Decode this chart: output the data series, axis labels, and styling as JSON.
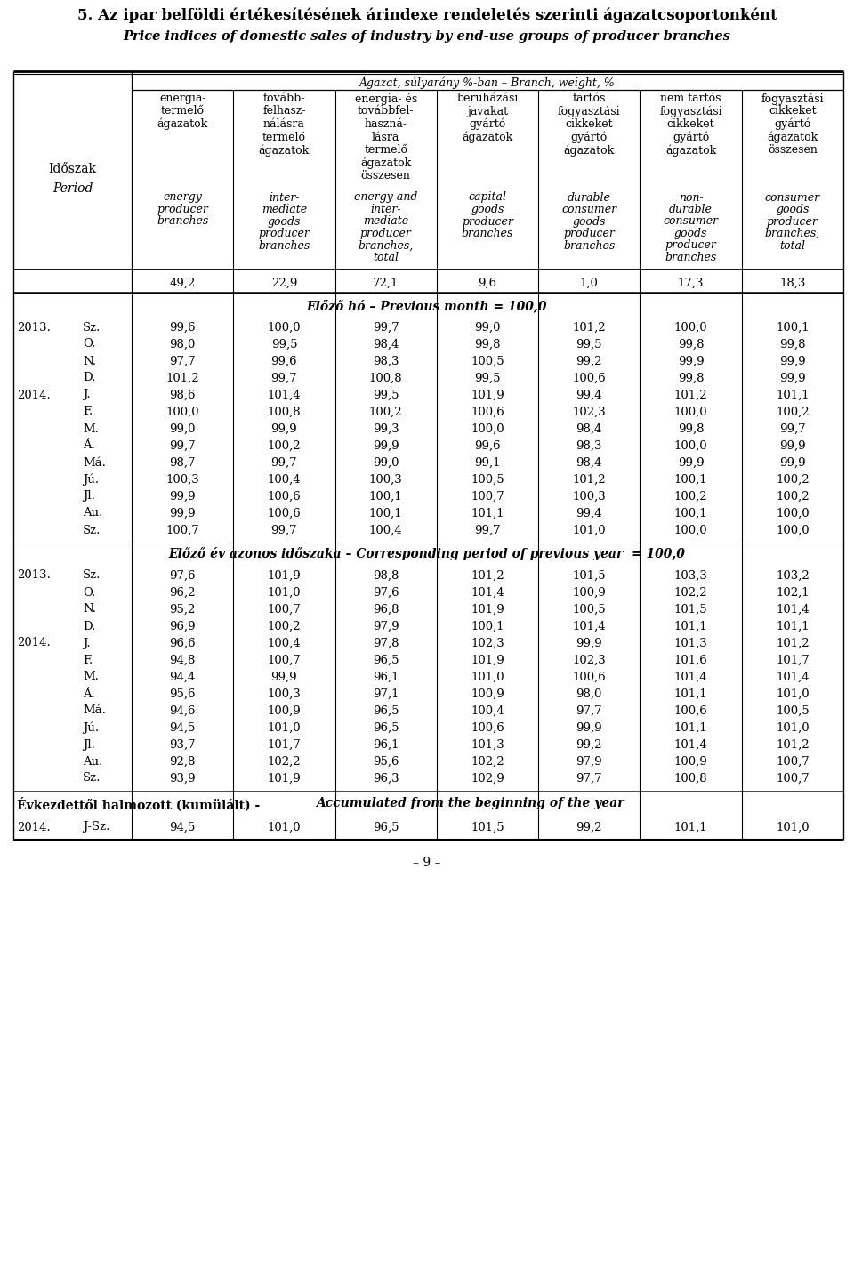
{
  "title_hu": "5. Az ipar belföldi értékesítésének árindexe rendeletés szerinti ágazatcsoportonként",
  "title_en": "Price indices of domestic sales of industry by end-use groups of producer branches",
  "col_headers_hu": [
    [
      "energia-",
      "termelő",
      "ágazatok"
    ],
    [
      "tovább-",
      "felhasz-",
      "nálásra",
      "termelő",
      "ágazatok"
    ],
    [
      "energia- és",
      "továbbfel-",
      "haszná-",
      "lásra",
      "termelő",
      "ágazatok",
      "összesen"
    ],
    [
      "beruházási",
      "javakat",
      "gyártó",
      "ágazatok"
    ],
    [
      "tartós",
      "fogyasztási",
      "cikkeket",
      "gyártó",
      "ágazatok"
    ],
    [
      "nem tartós",
      "fogyasztási",
      "cikkeket",
      "gyártó",
      "ágazatok"
    ],
    [
      "fogyasztási",
      "cikkeket",
      "gyártó",
      "ágazatok",
      "összesen"
    ]
  ],
  "col_headers_en": [
    [
      "energy",
      "producer",
      "branches"
    ],
    [
      "inter-",
      "mediate",
      "goods",
      "producer",
      "branches"
    ],
    [
      "energy and",
      "inter-",
      "mediate",
      "producer",
      "branches,",
      "total"
    ],
    [
      "capital",
      "goods",
      "producer",
      "branches"
    ],
    [
      "durable",
      "consumer",
      "goods",
      "producer",
      "branches"
    ],
    [
      "non-",
      "durable",
      "consumer",
      "goods",
      "producer",
      "branches"
    ],
    [
      "consumer",
      "goods",
      "producer",
      "branches,",
      "total"
    ]
  ],
  "weights": [
    "49,2",
    "22,9",
    "72,1",
    "9,6",
    "1,0",
    "17,3",
    "18,3"
  ],
  "branch_header": "Ágazat, súlyarány %-ban – Branch, weight, %",
  "period_label_hu": "Időszak",
  "period_label_en": "Period",
  "section1_label_hu": "Előző hó",
  "section1_label_en": "Previous month = 100,0",
  "section2_label_hu": "Előző év azonos időszaka",
  "section2_label_en": "Corresponding period of previous year  = 100,0",
  "section3_label_hu": "Évkezdettől halmozott (kumülált)",
  "section3_label_en": "Accumulated from the beginning of the year",
  "data_section1": [
    [
      "2013.",
      "Sz.",
      "99,6",
      "100,0",
      "99,7",
      "99,0",
      "101,2",
      "100,0",
      "100,1"
    ],
    [
      "",
      "O.",
      "98,0",
      "99,5",
      "98,4",
      "99,8",
      "99,5",
      "99,8",
      "99,8"
    ],
    [
      "",
      "N.",
      "97,7",
      "99,6",
      "98,3",
      "100,5",
      "99,2",
      "99,9",
      "99,9"
    ],
    [
      "",
      "D.",
      "101,2",
      "99,7",
      "100,8",
      "99,5",
      "100,6",
      "99,8",
      "99,9"
    ],
    [
      "2014.",
      "J.",
      "98,6",
      "101,4",
      "99,5",
      "101,9",
      "99,4",
      "101,2",
      "101,1"
    ],
    [
      "",
      "F.",
      "100,0",
      "100,8",
      "100,2",
      "100,6",
      "102,3",
      "100,0",
      "100,2"
    ],
    [
      "",
      "M.",
      "99,0",
      "99,9",
      "99,3",
      "100,0",
      "98,4",
      "99,8",
      "99,7"
    ],
    [
      "",
      "Á.",
      "99,7",
      "100,2",
      "99,9",
      "99,6",
      "98,3",
      "100,0",
      "99,9"
    ],
    [
      "",
      "Má.",
      "98,7",
      "99,7",
      "99,0",
      "99,1",
      "98,4",
      "99,9",
      "99,9"
    ],
    [
      "",
      "Jú.",
      "100,3",
      "100,4",
      "100,3",
      "100,5",
      "101,2",
      "100,1",
      "100,2"
    ],
    [
      "",
      "Jl.",
      "99,9",
      "100,6",
      "100,1",
      "100,7",
      "100,3",
      "100,2",
      "100,2"
    ],
    [
      "",
      "Au.",
      "99,9",
      "100,6",
      "100,1",
      "101,1",
      "99,4",
      "100,1",
      "100,0"
    ],
    [
      "",
      "Sz.",
      "100,7",
      "99,7",
      "100,4",
      "99,7",
      "101,0",
      "100,0",
      "100,0"
    ]
  ],
  "data_section2": [
    [
      "2013.",
      "Sz.",
      "97,6",
      "101,9",
      "98,8",
      "101,2",
      "101,5",
      "103,3",
      "103,2"
    ],
    [
      "",
      "O.",
      "96,2",
      "101,0",
      "97,6",
      "101,4",
      "100,9",
      "102,2",
      "102,1"
    ],
    [
      "",
      "N.",
      "95,2",
      "100,7",
      "96,8",
      "101,9",
      "100,5",
      "101,5",
      "101,4"
    ],
    [
      "",
      "D.",
      "96,9",
      "100,2",
      "97,9",
      "100,1",
      "101,4",
      "101,1",
      "101,1"
    ],
    [
      "2014.",
      "J.",
      "96,6",
      "100,4",
      "97,8",
      "102,3",
      "99,9",
      "101,3",
      "101,2"
    ],
    [
      "",
      "F.",
      "94,8",
      "100,7",
      "96,5",
      "101,9",
      "102,3",
      "101,6",
      "101,7"
    ],
    [
      "",
      "M.",
      "94,4",
      "99,9",
      "96,1",
      "101,0",
      "100,6",
      "101,4",
      "101,4"
    ],
    [
      "",
      "Á.",
      "95,6",
      "100,3",
      "97,1",
      "100,9",
      "98,0",
      "101,1",
      "101,0"
    ],
    [
      "",
      "Má.",
      "94,6",
      "100,9",
      "96,5",
      "100,4",
      "97,7",
      "100,6",
      "100,5"
    ],
    [
      "",
      "Jú.",
      "94,5",
      "101,0",
      "96,5",
      "100,6",
      "99,9",
      "101,1",
      "101,0"
    ],
    [
      "",
      "Jl.",
      "93,7",
      "101,7",
      "96,1",
      "101,3",
      "99,2",
      "101,4",
      "101,2"
    ],
    [
      "",
      "Au.",
      "92,8",
      "102,2",
      "95,6",
      "102,2",
      "97,9",
      "100,9",
      "100,7"
    ],
    [
      "",
      "Sz.",
      "93,9",
      "101,9",
      "96,3",
      "102,9",
      "97,7",
      "100,8",
      "100,7"
    ]
  ],
  "data_section3": [
    [
      "2014.",
      "J-Sz.",
      "94,5",
      "101,0",
      "96,5",
      "101,5",
      "99,2",
      "101,1",
      "101,0"
    ]
  ],
  "footer": "– 9 –"
}
